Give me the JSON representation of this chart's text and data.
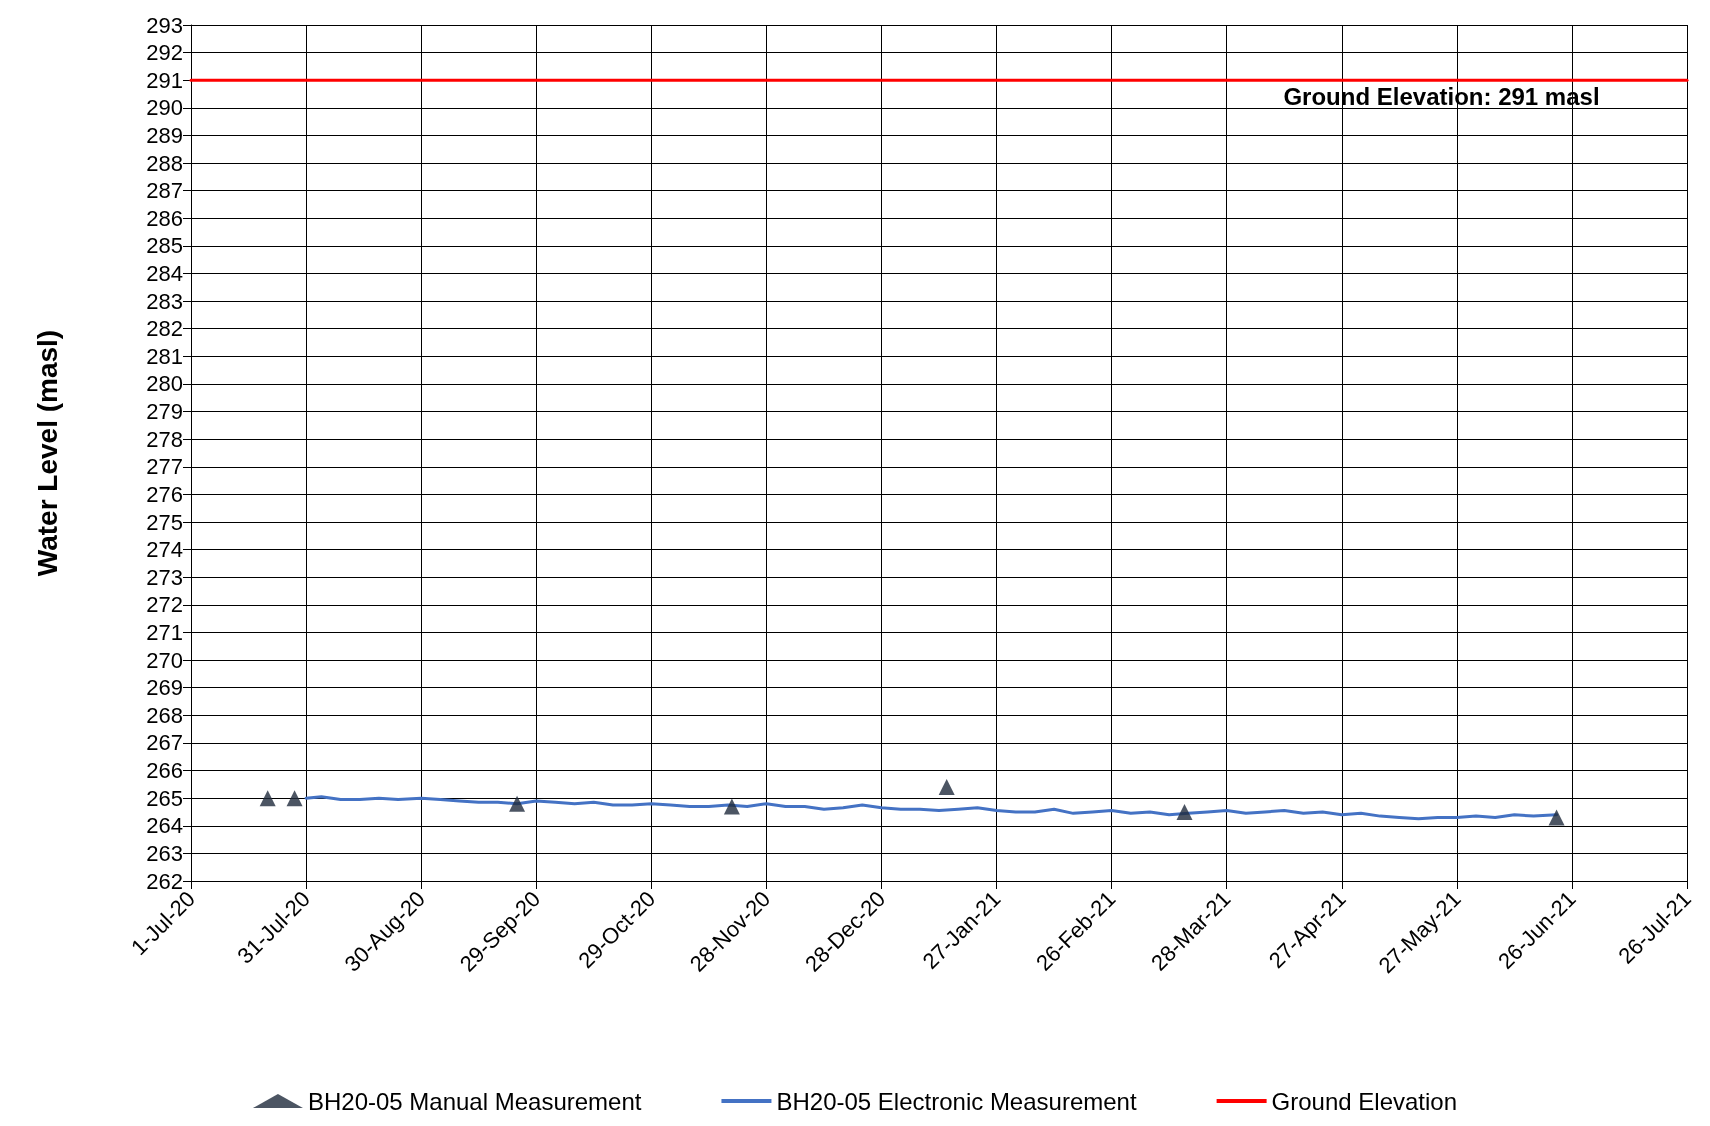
{
  "chart_data": {
    "type": "line",
    "ylabel": "Water Level (masl)",
    "xlim": [
      "2020-07-01",
      "2021-07-26"
    ],
    "ylim": [
      262,
      293
    ],
    "yticks": [
      262,
      263,
      264,
      265,
      266,
      267,
      268,
      269,
      270,
      271,
      272,
      273,
      274,
      275,
      276,
      277,
      278,
      279,
      280,
      281,
      282,
      283,
      284,
      285,
      286,
      287,
      288,
      289,
      290,
      291,
      292,
      293
    ],
    "xticks": [
      {
        "value": "2020-07-01",
        "label": "1-Jul-20"
      },
      {
        "value": "2020-07-31",
        "label": "31-Jul-20"
      },
      {
        "value": "2020-08-30",
        "label": "30-Aug-20"
      },
      {
        "value": "2020-09-29",
        "label": "29-Sep-20"
      },
      {
        "value": "2020-10-29",
        "label": "29-Oct-20"
      },
      {
        "value": "2020-11-28",
        "label": "28-Nov-20"
      },
      {
        "value": "2020-12-28",
        "label": "28-Dec-20"
      },
      {
        "value": "2021-01-27",
        "label": "27-Jan-21"
      },
      {
        "value": "2021-02-26",
        "label": "26-Feb-21"
      },
      {
        "value": "2021-03-28",
        "label": "28-Mar-21"
      },
      {
        "value": "2021-04-27",
        "label": "27-Apr-21"
      },
      {
        "value": "2021-05-27",
        "label": "27-May-21"
      },
      {
        "value": "2021-06-26",
        "label": "26-Jun-21"
      },
      {
        "value": "2021-07-26",
        "label": "26-Jul-21"
      }
    ],
    "grid": true,
    "legend": "bottom",
    "line_style": "solid",
    "series": [
      {
        "name": "BH20-05 Manual Measurement",
        "type": "scatter",
        "marker": "triangle",
        "color": "#1f2a3c",
        "x": [
          "2020-07-21",
          "2020-07-28",
          "2020-09-24",
          "2020-11-19",
          "2021-01-14",
          "2021-03-17",
          "2021-06-22"
        ],
        "values": [
          265.0,
          265.0,
          264.8,
          264.7,
          265.4,
          264.5,
          264.3
        ]
      },
      {
        "name": "BH20-05 Electronic Measurement",
        "marker": "none",
        "color": "#4472c4",
        "x": [
          "2020-07-31",
          "2020-08-04",
          "2020-08-09",
          "2020-08-14",
          "2020-08-19",
          "2020-08-24",
          "2020-08-30",
          "2020-09-04",
          "2020-09-09",
          "2020-09-14",
          "2020-09-19",
          "2020-09-24",
          "2020-09-29",
          "2020-10-04",
          "2020-10-09",
          "2020-10-14",
          "2020-10-19",
          "2020-10-24",
          "2020-10-29",
          "2020-11-03",
          "2020-11-08",
          "2020-11-13",
          "2020-11-18",
          "2020-11-23",
          "2020-11-28",
          "2020-12-03",
          "2020-12-08",
          "2020-12-13",
          "2020-12-18",
          "2020-12-23",
          "2020-12-28",
          "2021-01-02",
          "2021-01-07",
          "2021-01-12",
          "2021-01-17",
          "2021-01-22",
          "2021-01-27",
          "2021-02-01",
          "2021-02-06",
          "2021-02-11",
          "2021-02-16",
          "2021-02-21",
          "2021-02-26",
          "2021-03-03",
          "2021-03-08",
          "2021-03-13",
          "2021-03-18",
          "2021-03-23",
          "2021-03-28",
          "2021-04-02",
          "2021-04-07",
          "2021-04-12",
          "2021-04-17",
          "2021-04-22",
          "2021-04-27",
          "2021-05-02",
          "2021-05-07",
          "2021-05-12",
          "2021-05-17",
          "2021-05-22",
          "2021-05-27",
          "2021-06-01",
          "2021-06-06",
          "2021-06-11",
          "2021-06-16",
          "2021-06-22"
        ],
        "values": [
          265.0,
          265.05,
          264.95,
          264.95,
          265.0,
          264.95,
          265.0,
          264.95,
          264.9,
          264.85,
          264.85,
          264.8,
          264.9,
          264.85,
          264.8,
          264.85,
          264.75,
          264.75,
          264.8,
          264.75,
          264.7,
          264.7,
          264.75,
          264.7,
          264.8,
          264.7,
          264.7,
          264.6,
          264.65,
          264.75,
          264.65,
          264.6,
          264.6,
          264.55,
          264.6,
          264.65,
          264.55,
          264.5,
          264.5,
          264.6,
          264.45,
          264.5,
          264.55,
          264.45,
          264.5,
          264.4,
          264.45,
          264.5,
          264.55,
          264.45,
          264.5,
          264.55,
          264.45,
          264.5,
          264.4,
          264.45,
          264.35,
          264.3,
          264.25,
          264.3,
          264.3,
          264.35,
          264.3,
          264.4,
          264.35,
          264.4
        ]
      },
      {
        "name": "Ground Elevation",
        "marker": "none",
        "color": "#ff0000",
        "x": [
          "2020-07-01",
          "2021-07-26"
        ],
        "values": [
          291,
          291
        ]
      }
    ],
    "annotations": [
      {
        "text": "Ground Elevation: 291 masl",
        "x": "2021-05-23",
        "y": 291
      }
    ]
  }
}
